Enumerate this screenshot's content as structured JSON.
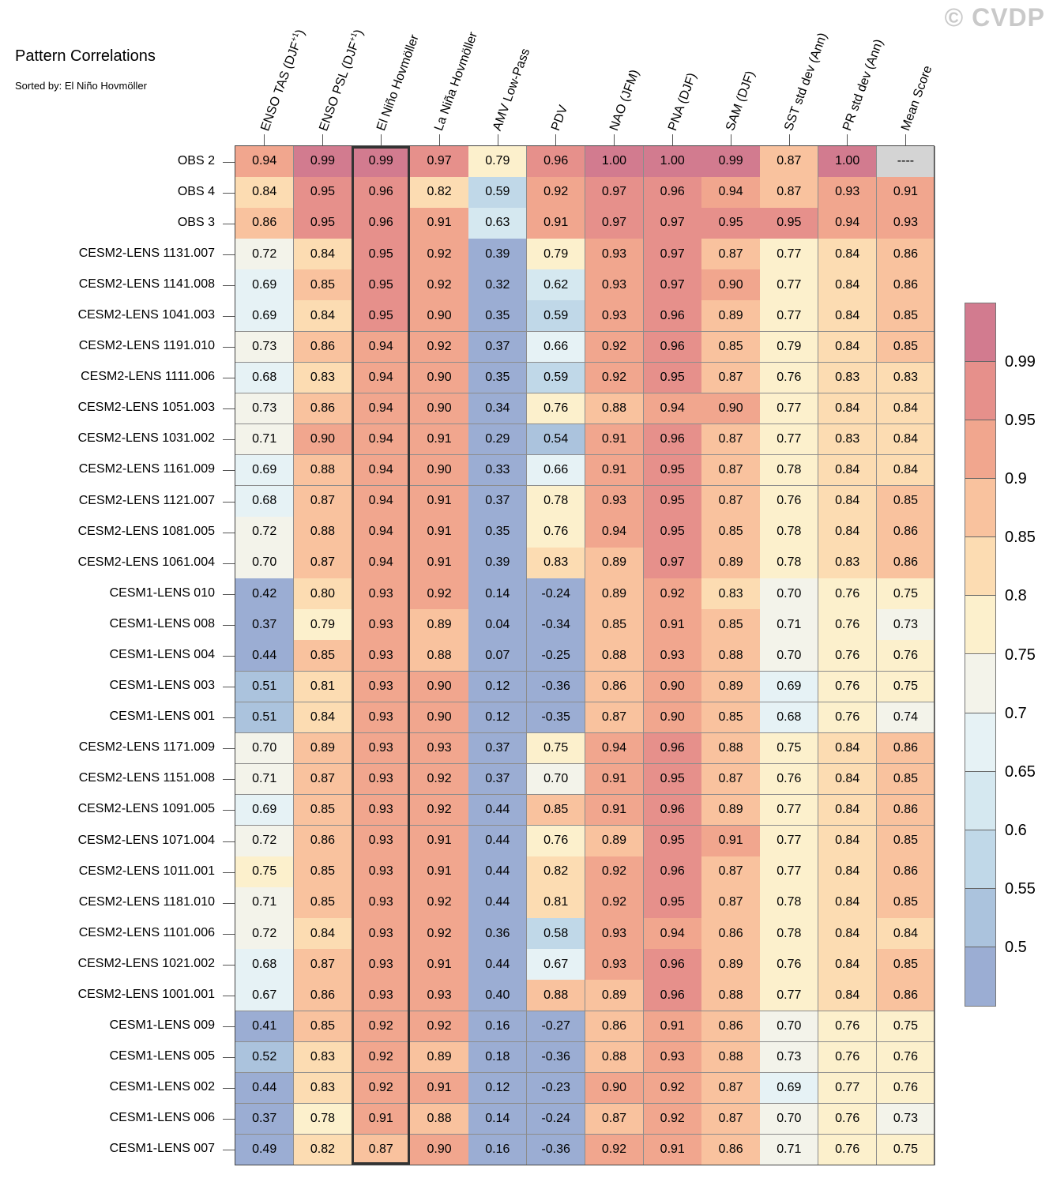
{
  "watermark": "© CVDP",
  "chart_data": {
    "type": "heatmap",
    "title": "Pattern Correlations",
    "subtitle": "Sorted by: El Niño Hovmöller",
    "columns": [
      "ENSO TAS (DJF+1)",
      "ENSO PSL (DJF+1)",
      "El Niño Hovmöller",
      "La Niña Hovmöller",
      "AMV Low-Pass",
      "PDV",
      "NAO (JFM)",
      "PNA (DJF)",
      "SAM (DJF)",
      "SST std dev (Ann)",
      "PR std dev (Ann)",
      "Mean Score"
    ],
    "sorted_column": "El Niño Hovmöller",
    "rows": [
      {
        "name": "OBS 2",
        "values": [
          "0.94",
          "0.99",
          "0.99",
          "0.97",
          "0.79",
          "0.96",
          "1.00",
          "1.00",
          "0.99",
          "0.87",
          "1.00",
          "----"
        ]
      },
      {
        "name": "OBS 4",
        "values": [
          "0.84",
          "0.95",
          "0.96",
          "0.82",
          "0.59",
          "0.92",
          "0.97",
          "0.96",
          "0.94",
          "0.87",
          "0.93",
          "0.91"
        ]
      },
      {
        "name": "OBS 3",
        "values": [
          "0.86",
          "0.95",
          "0.96",
          "0.91",
          "0.63",
          "0.91",
          "0.97",
          "0.97",
          "0.95",
          "0.95",
          "0.94",
          "0.93"
        ]
      },
      {
        "name": "CESM2-LENS 1131.007",
        "values": [
          "0.72",
          "0.84",
          "0.95",
          "0.92",
          "0.39",
          "0.79",
          "0.93",
          "0.97",
          "0.87",
          "0.77",
          "0.84",
          "0.86"
        ]
      },
      {
        "name": "CESM2-LENS 1141.008",
        "values": [
          "0.69",
          "0.85",
          "0.95",
          "0.92",
          "0.32",
          "0.62",
          "0.93",
          "0.97",
          "0.90",
          "0.77",
          "0.84",
          "0.86"
        ]
      },
      {
        "name": "CESM2-LENS 1041.003",
        "values": [
          "0.69",
          "0.84",
          "0.95",
          "0.90",
          "0.35",
          "0.59",
          "0.93",
          "0.96",
          "0.89",
          "0.77",
          "0.84",
          "0.85"
        ]
      },
      {
        "name": "CESM2-LENS 1191.010",
        "values": [
          "0.73",
          "0.86",
          "0.94",
          "0.92",
          "0.37",
          "0.66",
          "0.92",
          "0.96",
          "0.85",
          "0.79",
          "0.84",
          "0.85"
        ]
      },
      {
        "name": "CESM2-LENS 1111.006",
        "values": [
          "0.68",
          "0.83",
          "0.94",
          "0.90",
          "0.35",
          "0.59",
          "0.92",
          "0.95",
          "0.87",
          "0.76",
          "0.83",
          "0.83"
        ]
      },
      {
        "name": "CESM2-LENS 1051.003",
        "values": [
          "0.73",
          "0.86",
          "0.94",
          "0.90",
          "0.34",
          "0.76",
          "0.88",
          "0.94",
          "0.90",
          "0.77",
          "0.84",
          "0.84"
        ]
      },
      {
        "name": "CESM2-LENS 1031.002",
        "values": [
          "0.71",
          "0.90",
          "0.94",
          "0.91",
          "0.29",
          "0.54",
          "0.91",
          "0.96",
          "0.87",
          "0.77",
          "0.83",
          "0.84"
        ]
      },
      {
        "name": "CESM2-LENS 1161.009",
        "values": [
          "0.69",
          "0.88",
          "0.94",
          "0.90",
          "0.33",
          "0.66",
          "0.91",
          "0.95",
          "0.87",
          "0.78",
          "0.84",
          "0.84"
        ]
      },
      {
        "name": "CESM2-LENS 1121.007",
        "values": [
          "0.68",
          "0.87",
          "0.94",
          "0.91",
          "0.37",
          "0.78",
          "0.93",
          "0.95",
          "0.87",
          "0.76",
          "0.84",
          "0.85"
        ]
      },
      {
        "name": "CESM2-LENS 1081.005",
        "values": [
          "0.72",
          "0.88",
          "0.94",
          "0.91",
          "0.35",
          "0.76",
          "0.94",
          "0.95",
          "0.85",
          "0.78",
          "0.84",
          "0.86"
        ]
      },
      {
        "name": "CESM2-LENS 1061.004",
        "values": [
          "0.70",
          "0.87",
          "0.94",
          "0.91",
          "0.39",
          "0.83",
          "0.89",
          "0.97",
          "0.89",
          "0.78",
          "0.83",
          "0.86"
        ]
      },
      {
        "name": "CESM1-LENS 010",
        "values": [
          "0.42",
          "0.80",
          "0.93",
          "0.92",
          "0.14",
          "-0.24",
          "0.89",
          "0.92",
          "0.83",
          "0.70",
          "0.76",
          "0.75"
        ]
      },
      {
        "name": "CESM1-LENS 008",
        "values": [
          "0.37",
          "0.79",
          "0.93",
          "0.89",
          "0.04",
          "-0.34",
          "0.85",
          "0.91",
          "0.85",
          "0.71",
          "0.76",
          "0.73"
        ]
      },
      {
        "name": "CESM1-LENS 004",
        "values": [
          "0.44",
          "0.85",
          "0.93",
          "0.88",
          "0.07",
          "-0.25",
          "0.88",
          "0.93",
          "0.88",
          "0.70",
          "0.76",
          "0.76"
        ]
      },
      {
        "name": "CESM1-LENS 003",
        "values": [
          "0.51",
          "0.81",
          "0.93",
          "0.90",
          "0.12",
          "-0.36",
          "0.86",
          "0.90",
          "0.89",
          "0.69",
          "0.76",
          "0.75"
        ]
      },
      {
        "name": "CESM1-LENS 001",
        "values": [
          "0.51",
          "0.84",
          "0.93",
          "0.90",
          "0.12",
          "-0.35",
          "0.87",
          "0.90",
          "0.85",
          "0.68",
          "0.76",
          "0.74"
        ]
      },
      {
        "name": "CESM2-LENS 1171.009",
        "values": [
          "0.70",
          "0.89",
          "0.93",
          "0.93",
          "0.37",
          "0.75",
          "0.94",
          "0.96",
          "0.88",
          "0.75",
          "0.84",
          "0.86"
        ]
      },
      {
        "name": "CESM2-LENS 1151.008",
        "values": [
          "0.71",
          "0.87",
          "0.93",
          "0.92",
          "0.37",
          "0.70",
          "0.91",
          "0.95",
          "0.87",
          "0.76",
          "0.84",
          "0.85"
        ]
      },
      {
        "name": "CESM2-LENS 1091.005",
        "values": [
          "0.69",
          "0.85",
          "0.93",
          "0.92",
          "0.44",
          "0.85",
          "0.91",
          "0.96",
          "0.89",
          "0.77",
          "0.84",
          "0.86"
        ]
      },
      {
        "name": "CESM2-LENS 1071.004",
        "values": [
          "0.72",
          "0.86",
          "0.93",
          "0.91",
          "0.44",
          "0.76",
          "0.89",
          "0.95",
          "0.91",
          "0.77",
          "0.84",
          "0.85"
        ]
      },
      {
        "name": "CESM2-LENS 1011.001",
        "values": [
          "0.75",
          "0.85",
          "0.93",
          "0.91",
          "0.44",
          "0.82",
          "0.92",
          "0.96",
          "0.87",
          "0.77",
          "0.84",
          "0.86"
        ]
      },
      {
        "name": "CESM2-LENS 1181.010",
        "values": [
          "0.71",
          "0.85",
          "0.93",
          "0.92",
          "0.44",
          "0.81",
          "0.92",
          "0.95",
          "0.87",
          "0.78",
          "0.84",
          "0.85"
        ]
      },
      {
        "name": "CESM2-LENS 1101.006",
        "values": [
          "0.72",
          "0.84",
          "0.93",
          "0.92",
          "0.36",
          "0.58",
          "0.93",
          "0.94",
          "0.86",
          "0.78",
          "0.84",
          "0.84"
        ]
      },
      {
        "name": "CESM2-LENS 1021.002",
        "values": [
          "0.68",
          "0.87",
          "0.93",
          "0.91",
          "0.44",
          "0.67",
          "0.93",
          "0.96",
          "0.89",
          "0.76",
          "0.84",
          "0.85"
        ]
      },
      {
        "name": "CESM2-LENS 1001.001",
        "values": [
          "0.67",
          "0.86",
          "0.93",
          "0.93",
          "0.40",
          "0.88",
          "0.89",
          "0.96",
          "0.88",
          "0.77",
          "0.84",
          "0.86"
        ]
      },
      {
        "name": "CESM1-LENS 009",
        "values": [
          "0.41",
          "0.85",
          "0.92",
          "0.92",
          "0.16",
          "-0.27",
          "0.86",
          "0.91",
          "0.86",
          "0.70",
          "0.76",
          "0.75"
        ]
      },
      {
        "name": "CESM1-LENS 005",
        "values": [
          "0.52",
          "0.83",
          "0.92",
          "0.89",
          "0.18",
          "-0.36",
          "0.88",
          "0.93",
          "0.88",
          "0.73",
          "0.76",
          "0.76"
        ]
      },
      {
        "name": "CESM1-LENS 002",
        "values": [
          "0.44",
          "0.83",
          "0.92",
          "0.91",
          "0.12",
          "-0.23",
          "0.90",
          "0.92",
          "0.87",
          "0.69",
          "0.77",
          "0.76"
        ]
      },
      {
        "name": "CESM1-LENS 006",
        "values": [
          "0.37",
          "0.78",
          "0.91",
          "0.88",
          "0.14",
          "-0.24",
          "0.87",
          "0.92",
          "0.87",
          "0.70",
          "0.76",
          "0.73"
        ]
      },
      {
        "name": "CESM1-LENS 007",
        "values": [
          "0.49",
          "0.82",
          "0.87",
          "0.90",
          "0.16",
          "-0.36",
          "0.92",
          "0.91",
          "0.86",
          "0.71",
          "0.76",
          "0.75"
        ]
      }
    ],
    "colorbar": {
      "levels": [
        0.5,
        0.55,
        0.6,
        0.65,
        0.7,
        0.75,
        0.8,
        0.85,
        0.9,
        0.95,
        0.99
      ],
      "tick_labels": [
        "0.5",
        "0.55",
        "0.6",
        "0.65",
        "0.7",
        "0.75",
        "0.8",
        "0.85",
        "0.9",
        "0.95",
        "0.99"
      ],
      "colors": [
        "#9badd3",
        "#abc3dd",
        "#c0d8e8",
        "#d5e8f0",
        "#e6f2f5",
        "#f3f3ea",
        "#fcf0cc",
        "#fcdcb2",
        "#f9c29e",
        "#f1a68e",
        "#e6908b",
        "#d27b8f"
      ],
      "missing_color": "#d4d4d4",
      "placement": "right"
    }
  }
}
